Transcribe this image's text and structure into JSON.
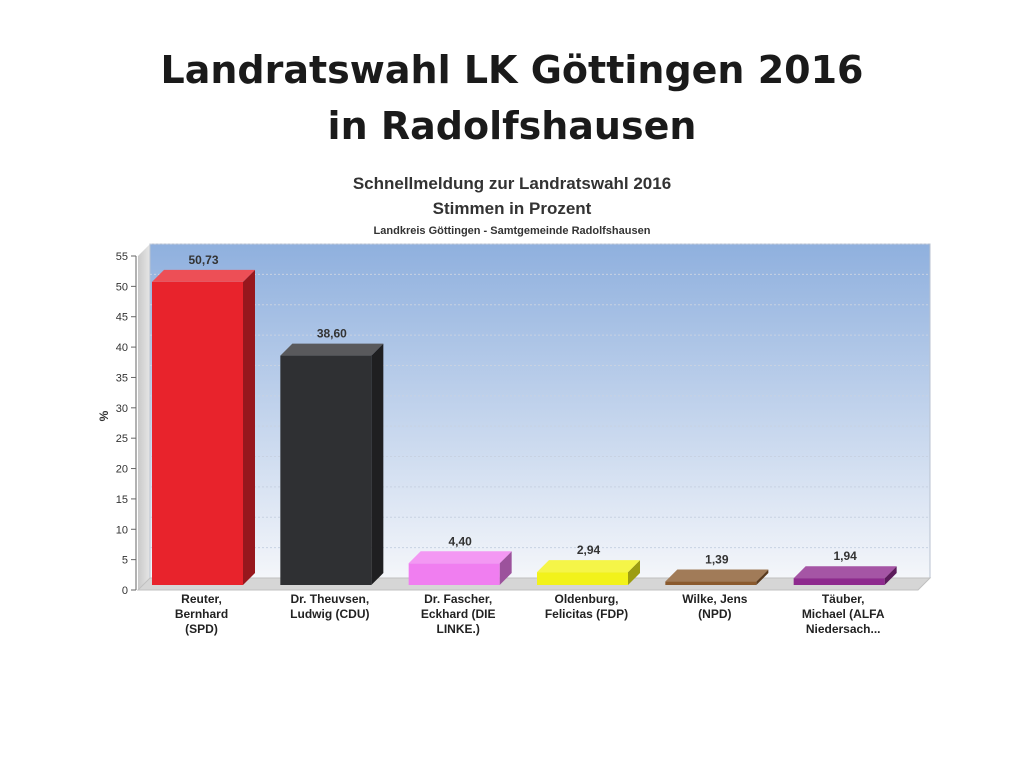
{
  "slide": {
    "title_line1": "Landratswahl  LK Göttingen 2016",
    "title_line2": "in Radolfshausen"
  },
  "colors": {
    "plot_top": "#8fb0de",
    "plot_bottom": "#f4f6fa"
  },
  "chart_data": {
    "type": "bar",
    "title": "Schnellmeldung zur Landratswahl 2016",
    "subtitle": "Stimmen in Prozent",
    "caption": "Landkreis Göttingen - Samtgemeinde Radolfshausen",
    "ylabel": "%",
    "ylim": [
      0,
      55
    ],
    "yticks": [
      0,
      5,
      10,
      15,
      20,
      25,
      30,
      35,
      40,
      45,
      50,
      55
    ],
    "grid": true,
    "categories": [
      [
        "Reuter,",
        "Bernhard",
        "(SPD)"
      ],
      [
        "Dr.  Theuvsen,",
        "Ludwig (CDU)"
      ],
      [
        "Dr. Fascher,",
        "Eckhard (DIE",
        "LINKE.)"
      ],
      [
        "Oldenburg,",
        "Felicitas (FDP)"
      ],
      [
        "Wilke, Jens",
        "(NPD)"
      ],
      [
        "Täuber,",
        "Michael (ALFA",
        "Niedersach..."
      ]
    ],
    "values": [
      50.73,
      38.6,
      4.4,
      2.94,
      1.39,
      1.94
    ],
    "value_labels": [
      "50,73",
      "38,60",
      "4,40",
      "2,94",
      "1,39",
      "1,94"
    ],
    "bar_colors": [
      "#e8232c",
      "#2f3033",
      "#f07ef0",
      "#f2f21a",
      "#8a5a2e",
      "#8e2a8e"
    ]
  }
}
